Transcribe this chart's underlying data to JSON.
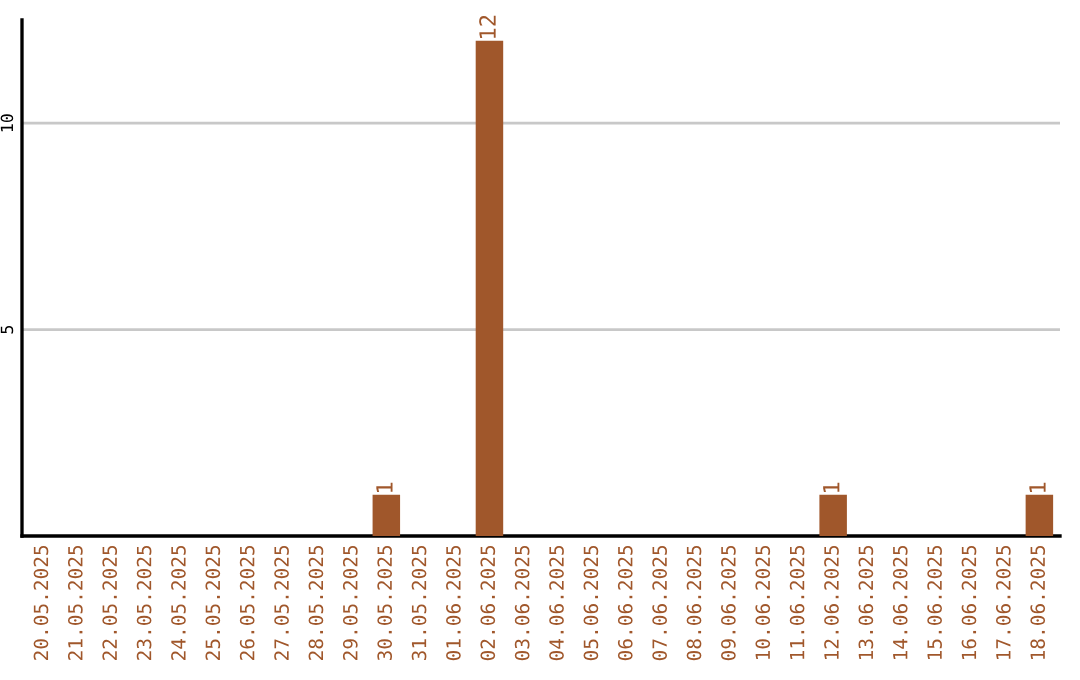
{
  "chart_data": {
    "type": "bar",
    "categories": [
      "20.05.2025",
      "21.05.2025",
      "22.05.2025",
      "23.05.2025",
      "24.05.2025",
      "25.05.2025",
      "26.05.2025",
      "27.05.2025",
      "28.05.2025",
      "29.05.2025",
      "30.05.2025",
      "31.05.2025",
      "01.06.2025",
      "02.06.2025",
      "03.06.2025",
      "04.06.2025",
      "05.06.2025",
      "06.06.2025",
      "07.06.2025",
      "08.06.2025",
      "09.06.2025",
      "10.06.2025",
      "11.06.2025",
      "12.06.2025",
      "13.06.2025",
      "14.06.2025",
      "15.06.2025",
      "16.06.2025",
      "17.06.2025",
      "18.06.2025"
    ],
    "values": [
      0,
      0,
      0,
      0,
      0,
      0,
      0,
      0,
      0,
      0,
      1,
      0,
      0,
      12,
      0,
      0,
      0,
      0,
      0,
      0,
      0,
      0,
      0,
      1,
      0,
      0,
      0,
      0,
      0,
      1
    ],
    "value_labels": [
      null,
      null,
      null,
      null,
      null,
      null,
      null,
      null,
      null,
      null,
      "1",
      null,
      null,
      "12",
      null,
      null,
      null,
      null,
      null,
      null,
      null,
      null,
      null,
      "1",
      null,
      null,
      null,
      null,
      null,
      "1"
    ],
    "color": "#a0572b",
    "ylim": [
      0,
      12.5
    ],
    "yticks": [
      5,
      10
    ],
    "grid": "y"
  }
}
